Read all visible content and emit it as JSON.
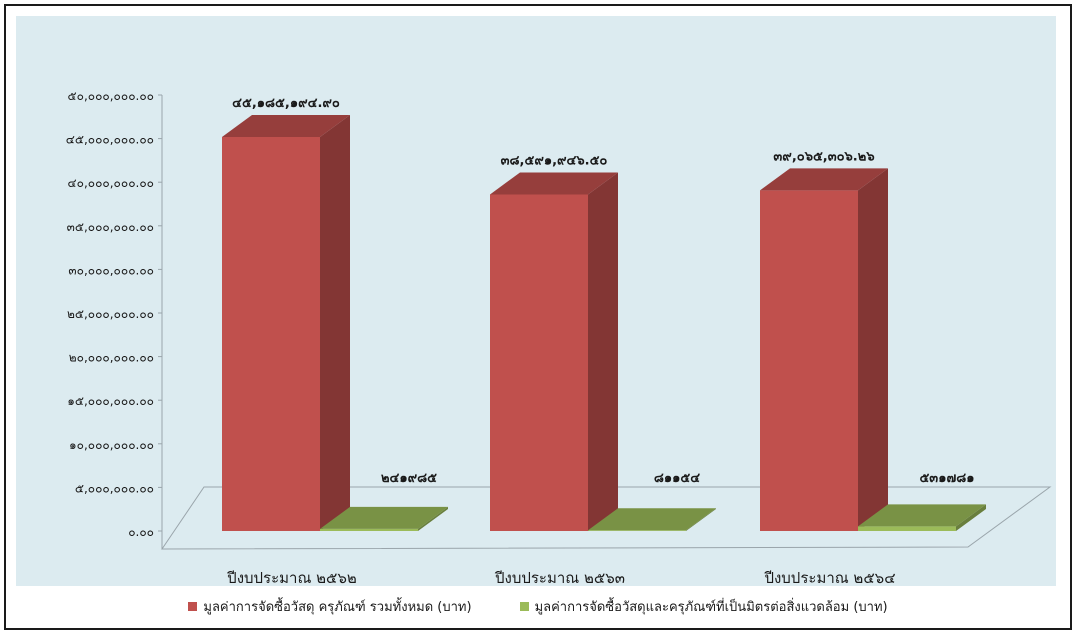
{
  "chart_data": {
    "type": "bar",
    "categories": [
      "ปีงบประมาณ ๒๕๖๒",
      "ปีงบประมาณ ๒๕๖๓",
      "ปีงบประมาณ ๒๕๖๔"
    ],
    "series": [
      {
        "name": "มูลค่าการจัดซื้อวัสดุ ครุภัณฑ์ รวมทั้งหมด (บาท)",
        "values": [
          45185194.9,
          38591946.5,
          39065306.26
        ],
        "labels": [
          "๔๕,๑๘๕,๑๙๔.๙๐",
          "๓๘,๕๙๑,๙๔๖.๕๐",
          "๓๙,๐๖๕,๓๐๖.๒๖"
        ],
        "color": "#c0504d"
      },
      {
        "name": "มูลค่าการจัดซื้อวัสดุและครุภัณฑ์ที่เป็นมิตรต่อสิ่งแวดล้อม (บาท)",
        "values": [
          241985,
          81154,
          531781
        ],
        "labels": [
          "๒๔๑๙๘๕",
          "๘๑๑๕๔",
          "๕๓๑๗๘๑"
        ],
        "color": "#9bbb59"
      }
    ],
    "ylim": [
      0,
      50000000
    ],
    "yticks": [
      0,
      5000000,
      10000000,
      15000000,
      20000000,
      25000000,
      30000000,
      35000000,
      40000000,
      45000000,
      50000000
    ],
    "yticklabels": [
      "๐.๐๐",
      "๕,๐๐๐,๐๐๐.๐๐",
      "๑๐,๐๐๐,๐๐๐.๐๐",
      "๑๕,๐๐๐,๐๐๐.๐๐",
      "๒๐,๐๐๐,๐๐๐.๐๐",
      "๒๕,๐๐๐,๐๐๐.๐๐",
      "๓๐,๐๐๐,๐๐๐.๐๐",
      "๓๕,๐๐๐,๐๐๐.๐๐",
      "๔๐,๐๐๐,๐๐๐.๐๐",
      "๔๕,๐๐๐,๐๐๐.๐๐",
      "๕๐,๐๐๐,๐๐๐.๐๐"
    ],
    "style": "3d-column",
    "grid": false,
    "legend_position": "bottom",
    "background": "#dcebf0"
  }
}
